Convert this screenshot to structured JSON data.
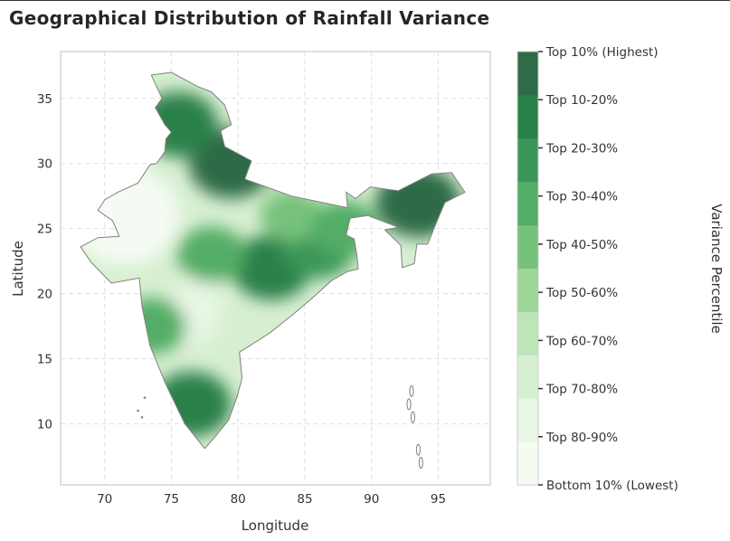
{
  "chart_data": {
    "type": "heatmap",
    "title": "Geographical Distribution of Rainfall Variance",
    "xlabel": "Longitude",
    "ylabel": "Latitude",
    "xlim": [
      66.7,
      98.9
    ],
    "ylim": [
      5.3,
      38.6
    ],
    "xticks": [
      70,
      75,
      80,
      85,
      90,
      95
    ],
    "yticks": [
      10,
      15,
      20,
      25,
      30,
      35
    ],
    "grid": true,
    "colorbar": {
      "label": "Variance Percentile",
      "tick_labels": [
        "Bottom 10% (Lowest)",
        "Top 80-90%",
        "Top 70-80%",
        "Top 60-70%",
        "Top 50-60%",
        "Top 40-50%",
        "Top 30-40%",
        "Top 20-30%",
        "Top 10-20%",
        "Top 10% (Highest)"
      ],
      "colors": [
        "#f5fbf3",
        "#e8f6e4",
        "#d7efd1",
        "#bde5b7",
        "#9dd598",
        "#77c27a",
        "#53ad66",
        "#3b9659",
        "#2a8049",
        "#2f6b47"
      ]
    },
    "high_variance_regions": [
      {
        "lon": 82.5,
        "lat": 22,
        "level": 8
      },
      {
        "lon": 86,
        "lat": 23.5,
        "level": 7
      },
      {
        "lon": 93.5,
        "lat": 27,
        "level": 9
      },
      {
        "lon": 79.5,
        "lat": 30,
        "level": 9
      },
      {
        "lon": 75.5,
        "lat": 33,
        "level": 8
      },
      {
        "lon": 76.5,
        "lat": 11.5,
        "level": 8
      },
      {
        "lon": 73.5,
        "lat": 17.5,
        "level": 6
      },
      {
        "lon": 78,
        "lat": 23,
        "level": 6
      },
      {
        "lon": 84,
        "lat": 26,
        "level": 5
      },
      {
        "lon": 88,
        "lat": 25,
        "level": 6
      }
    ]
  }
}
